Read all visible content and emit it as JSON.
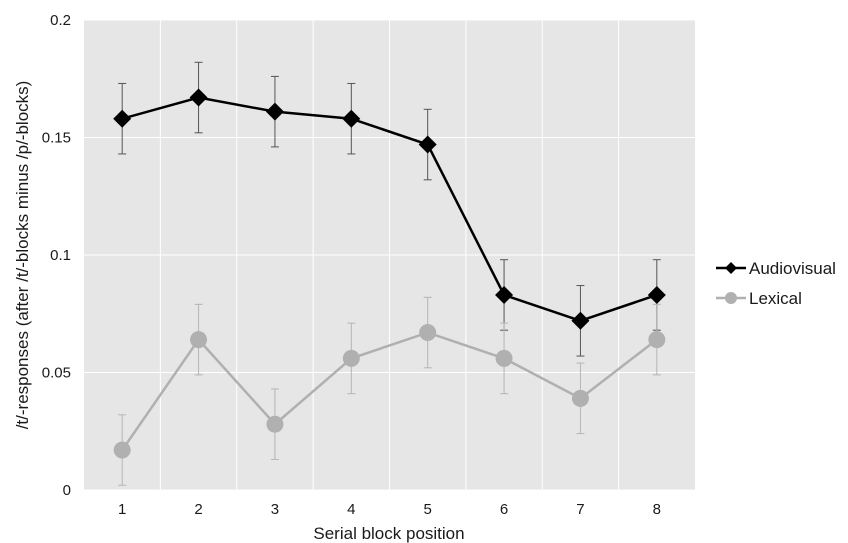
{
  "chart_data": {
    "type": "line",
    "xlabel": "Serial block position",
    "ylabel": "/t/-responses (after /t/-blocks minus /p/-blocks)",
    "categories": [
      "1",
      "2",
      "3",
      "4",
      "5",
      "6",
      "7",
      "8"
    ],
    "ylim": [
      0,
      0.2
    ],
    "yticks": [
      0,
      0.05,
      0.1,
      0.15,
      0.2
    ],
    "ytick_labels": [
      "0",
      "0.05",
      "0.1",
      "0.15",
      "0.2"
    ],
    "grid": true,
    "legend_position": "right",
    "series": [
      {
        "name": "Audiovisual",
        "color": "#000000",
        "marker": "diamond",
        "values": [
          0.158,
          0.167,
          0.161,
          0.158,
          0.147,
          0.083,
          0.072,
          0.083
        ],
        "error": [
          0.015,
          0.015,
          0.015,
          0.015,
          0.015,
          0.015,
          0.015,
          0.015
        ]
      },
      {
        "name": "Lexical",
        "color": "#b0b0b0",
        "marker": "circle",
        "values": [
          0.017,
          0.064,
          0.028,
          0.056,
          0.067,
          0.056,
          0.039,
          0.064
        ],
        "error": [
          0.015,
          0.015,
          0.015,
          0.015,
          0.015,
          0.015,
          0.015,
          0.015
        ]
      }
    ]
  }
}
